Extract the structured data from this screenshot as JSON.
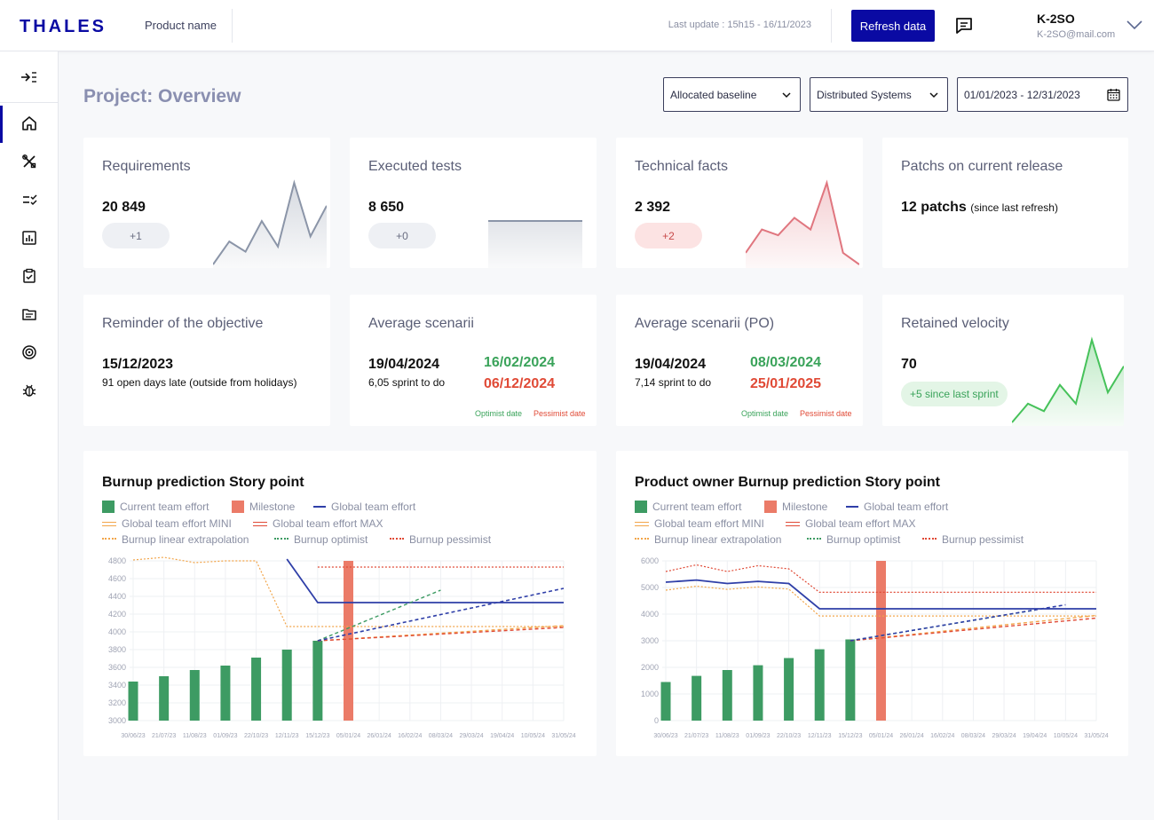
{
  "header": {
    "logo_text": "THALES",
    "product_name": "Product name",
    "last_update": "Last update : 15h15 - 16/11/2023",
    "refresh_label": "Refresh data",
    "user_name": "K-2SO",
    "user_email": "K-2SO@mail.com",
    "brand_color": "#0a0aa3"
  },
  "sidebar": {
    "toggle_icon": "expand-sidebar-icon",
    "items": [
      {
        "icon": "home-icon",
        "active": true
      },
      {
        "icon": "tools-icon",
        "active": false
      },
      {
        "icon": "checklist-icon",
        "active": false
      },
      {
        "icon": "bar-chart-icon",
        "active": false
      },
      {
        "icon": "clipboard-check-icon",
        "active": false
      },
      {
        "icon": "document-icon",
        "active": false
      },
      {
        "icon": "target-icon",
        "active": false
      },
      {
        "icon": "bug-icon",
        "active": false
      }
    ]
  },
  "page": {
    "title": "Project: Overview",
    "filters": {
      "baseline": "Allocated baseline",
      "system": "Distributed Systems",
      "date_range": "01/01/2023 - 12/31/2023"
    }
  },
  "cards": {
    "requirements": {
      "title": "Requirements",
      "value": "20 849",
      "delta": "+1"
    },
    "executed_tests": {
      "title": "Executed tests",
      "value": "8 650",
      "delta": "+0"
    },
    "technical_facts": {
      "title": "Technical facts",
      "value": "2 392",
      "delta": "+2"
    },
    "patchs": {
      "title": "Patchs on current release",
      "value": "12 patchs",
      "suffix": "(since last refresh)"
    },
    "objective": {
      "title": "Reminder of the objective",
      "value": "15/12/2023",
      "sub": "91 open days late (outside from holidays)"
    },
    "avg_scenarii": {
      "title": "Average scenarii",
      "value": "19/04/2024",
      "sub": "6,05 sprint to do",
      "optimist": "16/02/2024",
      "pessimist": "06/12/2024",
      "optimist_label": "Optimist date",
      "pessimist_label": "Pessimist date"
    },
    "avg_scenarii_po": {
      "title": "Average scenarii (PO)",
      "value": "19/04/2024",
      "sub": "7,14 sprint to do",
      "optimist": "08/03/2024",
      "pessimist": "25/01/2025",
      "optimist_label": "Optimist date",
      "pessimist_label": "Pessimist date"
    },
    "velocity": {
      "title": "Retained velocity",
      "value": "70",
      "delta": "+5 since last sprint"
    }
  },
  "legend": {
    "current": "Current team effort",
    "milestone": "Milestone",
    "global": "Global team effort",
    "mini": "Global team effort MINI",
    "max": "Global team effort MAX",
    "linear": "Burnup linear extrapolation",
    "optimist": "Burnup optimist",
    "pessimist": "Burnup pessimist"
  },
  "chart_data": [
    {
      "type": "bar",
      "title": "Burnup prediction Story point",
      "categories": [
        "30/06/23",
        "21/07/23",
        "11/08/23",
        "01/09/23",
        "22/10/23",
        "12/11/23",
        "15/12/23",
        "05/01/24",
        "26/01/24",
        "16/02/24",
        "08/03/24",
        "29/03/24",
        "19/04/24",
        "10/05/24",
        "31/05/24"
      ],
      "ylim": [
        3000,
        4800
      ],
      "yticks": [
        3000,
        3200,
        3400,
        3600,
        3800,
        4000,
        4200,
        4400,
        4600,
        4800
      ],
      "series": [
        {
          "name": "Current team effort",
          "kind": "bar",
          "values": [
            3440,
            3500,
            3570,
            3620,
            3710,
            3800,
            3900,
            null,
            null,
            null,
            null,
            null,
            null,
            null,
            null
          ]
        },
        {
          "name": "Milestone",
          "kind": "bar",
          "values": [
            null,
            null,
            null,
            null,
            null,
            null,
            null,
            4800,
            null,
            null,
            null,
            null,
            null,
            null,
            null
          ]
        },
        {
          "name": "Global team effort",
          "kind": "line",
          "values": [
            null,
            null,
            null,
            null,
            null,
            4820,
            4330,
            4330,
            4330,
            4330,
            4330,
            4330,
            4330,
            4330,
            4330
          ]
        },
        {
          "name": "Global team effort MINI",
          "kind": "line",
          "values": [
            4810,
            4840,
            4780,
            4800,
            4800,
            4060,
            4060,
            4060,
            4060,
            4060,
            4060,
            4060,
            4060,
            4060,
            4060
          ]
        },
        {
          "name": "Global team effort MAX",
          "kind": "line",
          "values": [
            null,
            null,
            null,
            null,
            null,
            null,
            4730,
            4730,
            4730,
            4730,
            4730,
            4730,
            4730,
            4730,
            4730
          ]
        },
        {
          "name": "Burnup linear extrapolation",
          "kind": "line",
          "values": [
            null,
            null,
            null,
            null,
            null,
            null,
            3900,
            null,
            null,
            null,
            null,
            null,
            null,
            null,
            4070
          ]
        },
        {
          "name": "Burnup optimist",
          "kind": "line",
          "values": [
            null,
            null,
            null,
            null,
            null,
            null,
            3900,
            null,
            null,
            null,
            4470,
            null,
            null,
            null,
            null
          ]
        },
        {
          "name": "Burnup pessimist",
          "kind": "line",
          "values": [
            null,
            null,
            null,
            null,
            null,
            null,
            3900,
            null,
            null,
            null,
            null,
            null,
            null,
            null,
            4050
          ]
        },
        {
          "name": "Global team effort (dashed)",
          "kind": "line",
          "values": [
            null,
            null,
            null,
            null,
            null,
            null,
            3900,
            null,
            null,
            null,
            null,
            null,
            null,
            null,
            4490
          ]
        }
      ],
      "grid": true
    },
    {
      "type": "bar",
      "title": "Product owner Burnup prediction Story point",
      "categories": [
        "30/06/23",
        "21/07/23",
        "11/08/23",
        "01/09/23",
        "22/10/23",
        "12/11/23",
        "15/12/23",
        "05/01/24",
        "26/01/24",
        "16/02/24",
        "08/03/24",
        "29/03/24",
        "19/04/24",
        "10/05/24",
        "31/05/24"
      ],
      "ylim": [
        0,
        6000
      ],
      "yticks": [
        0,
        1000,
        2000,
        3000,
        4000,
        5000,
        6000
      ],
      "series": [
        {
          "name": "Current team effort",
          "kind": "bar",
          "values": [
            1450,
            1680,
            1900,
            2080,
            2350,
            2680,
            3050,
            null,
            null,
            null,
            null,
            null,
            null,
            null,
            null
          ]
        },
        {
          "name": "Milestone",
          "kind": "bar",
          "values": [
            null,
            null,
            null,
            null,
            null,
            null,
            null,
            6000,
            null,
            null,
            null,
            null,
            null,
            null,
            null
          ]
        },
        {
          "name": "Global team effort",
          "kind": "line",
          "values": [
            5200,
            5280,
            5150,
            5230,
            5150,
            4200,
            4200,
            4200,
            4200,
            4200,
            4200,
            4200,
            4200,
            4200,
            4200
          ]
        },
        {
          "name": "Global team effort MINI",
          "kind": "line",
          "values": [
            4900,
            5050,
            4930,
            5020,
            4940,
            3930,
            3930,
            3930,
            3930,
            3930,
            3930,
            3930,
            3930,
            3930,
            3930
          ]
        },
        {
          "name": "Global team effort MAX",
          "kind": "line",
          "values": [
            5600,
            5850,
            5600,
            5820,
            5700,
            4820,
            4820,
            4820,
            4820,
            4820,
            4820,
            4820,
            4820,
            4820,
            4820
          ]
        },
        {
          "name": "Burnup linear extrapolation",
          "kind": "line",
          "values": [
            null,
            null,
            null,
            null,
            null,
            null,
            3000,
            null,
            null,
            null,
            null,
            null,
            null,
            null,
            3950
          ]
        },
        {
          "name": "Burnup optimist",
          "kind": "line",
          "values": [
            null,
            null,
            null,
            null,
            null,
            null,
            3000,
            null,
            null,
            null,
            null,
            null,
            4150,
            null,
            null
          ]
        },
        {
          "name": "Burnup pessimist",
          "kind": "line",
          "values": [
            null,
            null,
            null,
            null,
            null,
            null,
            3000,
            null,
            null,
            null,
            null,
            null,
            null,
            null,
            3850
          ]
        },
        {
          "name": "Global team effort (dashed)",
          "kind": "line",
          "values": [
            null,
            null,
            null,
            null,
            null,
            null,
            3000,
            null,
            null,
            null,
            null,
            null,
            null,
            4350,
            null
          ]
        }
      ],
      "grid": true
    }
  ],
  "sparklines": {
    "requirements": [
      20630,
      20720,
      20680,
      20800,
      20700,
      20950,
      20740,
      20860
    ],
    "executed_tests": [
      8650,
      8650,
      8650,
      8650,
      8650
    ],
    "technical_facts": [
      2380,
      2384,
      2383,
      2386,
      2384,
      2392,
      2380,
      2378
    ],
    "velocity": [
      50,
      55,
      53,
      60,
      55,
      72,
      58,
      65
    ]
  },
  "colors": {
    "green": "#3d9b63",
    "milestone": "#eb7b68",
    "blue": "#2f3fa8",
    "orange": "#f2a54a",
    "red": "#e04a36",
    "grey_spark": "#8b95a8",
    "red_spark": "#e0767f",
    "green_spark": "#46c25a"
  }
}
